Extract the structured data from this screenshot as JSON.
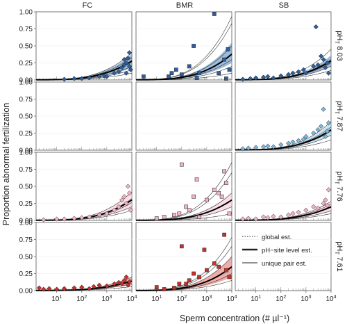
{
  "figure": {
    "ylabel": "Proportion abnormal fertilization",
    "xlabel": "Sperm concentration (# µl⁻¹)"
  },
  "columns": [
    "FC",
    "BMR",
    "SB"
  ],
  "rows": [
    "pH_T 8.03",
    "pH_T 7.87",
    "pH_T 7.76",
    "pH_T 7.61"
  ],
  "row_labels": [
    {
      "pre": "pH",
      "sub": "T",
      "post": " 8.03"
    },
    {
      "pre": "pH",
      "sub": "T",
      "post": " 7.87"
    },
    {
      "pre": "pH",
      "sub": "T",
      "post": " 7.76"
    },
    {
      "pre": "pH",
      "sub": "T",
      "post": " 7.61"
    }
  ],
  "y_ticks": [
    "1.00",
    "0.75",
    "0.50",
    "0.25",
    "0.00"
  ],
  "x_ticks": [
    {
      "base": "10",
      "exp": "1"
    },
    {
      "base": "10",
      "exp": "2"
    },
    {
      "base": "10",
      "exp": "3"
    },
    {
      "base": "10",
      "exp": "4"
    }
  ],
  "legend": {
    "items": [
      {
        "label": "global est.",
        "style": "dotted"
      },
      {
        "label": "pH−site level est.",
        "style": "thick"
      },
      {
        "label": "unique pair est.",
        "style": "thin"
      }
    ]
  },
  "colors": {
    "pH_T 8.03": "#2f5f9a",
    "pH_T 7.87": "#7fb6dc",
    "pH_T 7.76": "#f2b2c4",
    "pH_T 7.61": "#c8302c",
    "band_8.03": "#5b8ec2",
    "band_7.87": "#9ccbe8",
    "band_7.76": "#f6c9d6",
    "band_7.61": "#e87770"
  },
  "chart_data": {
    "type": "scatter",
    "x_scale": "log",
    "xlim": [
      1.5,
      10000
    ],
    "ylim": [
      0,
      1
    ],
    "panels": [
      {
        "row": "pH_T 8.03",
        "col": "FC",
        "marker": "diamond",
        "color": "#2f5f9a",
        "points": [
          [
            20,
            0.01
          ],
          [
            50,
            0.02
          ],
          [
            100,
            0.02
          ],
          [
            200,
            0.03
          ],
          [
            500,
            0.05
          ],
          [
            800,
            0.06
          ],
          [
            1000,
            0.05
          ],
          [
            2000,
            0.1
          ],
          [
            3000,
            0.12
          ],
          [
            4000,
            0.18
          ],
          [
            5000,
            0.22
          ],
          [
            5000,
            0.3
          ],
          [
            6000,
            0.25
          ],
          [
            7000,
            0.32
          ],
          [
            8000,
            0.2
          ],
          [
            8000,
            0.4
          ],
          [
            9000,
            0.15
          ],
          [
            6000,
            0.1
          ]
        ],
        "curve_global": [
          0.002,
          0.28
        ],
        "curve_site": [
          0.003,
          0.28
        ],
        "band": [
          0.18,
          0.38
        ],
        "pair_ends": [
          0.1,
          0.15,
          0.2,
          0.26,
          0.33,
          0.4
        ]
      },
      {
        "row": "pH_T 8.03",
        "col": "BMR",
        "marker": "square",
        "color": "#2f5f9a",
        "points": [
          [
            3,
            0.05
          ],
          [
            30,
            0.05
          ],
          [
            40,
            0.1
          ],
          [
            60,
            0.15
          ],
          [
            100,
            0.08
          ],
          [
            200,
            0.2
          ],
          [
            300,
            0.5
          ],
          [
            400,
            0.03
          ],
          [
            500,
            0.1
          ],
          [
            2000,
            0.97
          ],
          [
            3000,
            0.1
          ],
          [
            5000,
            0.3
          ],
          [
            6000,
            0.02
          ],
          [
            7000,
            0.45
          ],
          [
            8000,
            0.15
          ]
        ],
        "curve_global": [
          0.002,
          0.38
        ],
        "curve_site": [
          0.003,
          0.38
        ],
        "band": [
          0.25,
          0.55
        ],
        "pair_ends": [
          0.1,
          0.2,
          0.3,
          0.5,
          0.83,
          0.93
        ]
      },
      {
        "row": "pH_T 8.03",
        "col": "SB",
        "marker": "diamond",
        "color": "#2f5f9a",
        "points": [
          [
            3,
            0.01
          ],
          [
            6,
            0.02
          ],
          [
            10,
            0.03
          ],
          [
            20,
            0.04
          ],
          [
            30,
            0.05
          ],
          [
            50,
            0.03
          ],
          [
            100,
            0.06
          ],
          [
            200,
            0.08
          ],
          [
            300,
            0.1
          ],
          [
            500,
            0.12
          ],
          [
            800,
            0.15
          ],
          [
            1000,
            0.1
          ],
          [
            2000,
            0.2
          ],
          [
            2500,
            0.78
          ],
          [
            3000,
            0.22
          ],
          [
            4000,
            0.35
          ],
          [
            5000,
            0.3
          ],
          [
            6000,
            0.18
          ],
          [
            7000,
            0.25
          ],
          [
            8000,
            0.1
          ]
        ],
        "curve_global": [
          0.002,
          0.28
        ],
        "curve_site": [
          0.003,
          0.28
        ],
        "band": [
          0.2,
          0.36
        ],
        "pair_ends": [
          0.14,
          0.2,
          0.25,
          0.3,
          0.45
        ]
      },
      {
        "row": "pH_T 7.87",
        "col": "FC",
        "empty": true,
        "points": []
      },
      {
        "row": "pH_T 7.87",
        "col": "BMR",
        "empty": true,
        "points": []
      },
      {
        "row": "pH_T 7.87",
        "col": "SB",
        "marker": "diamond",
        "color": "#7fb6dc",
        "points": [
          [
            3,
            0.02
          ],
          [
            5,
            0.03
          ],
          [
            10,
            0.04
          ],
          [
            20,
            0.05
          ],
          [
            30,
            0.06
          ],
          [
            50,
            0.05
          ],
          [
            100,
            0.08
          ],
          [
            200,
            0.1
          ],
          [
            300,
            0.12
          ],
          [
            500,
            0.14
          ],
          [
            800,
            0.16
          ],
          [
            1000,
            0.2
          ],
          [
            2000,
            0.25
          ],
          [
            3000,
            0.3
          ],
          [
            4000,
            0.35
          ],
          [
            5000,
            0.6
          ],
          [
            6000,
            0.2
          ],
          [
            7000,
            0.28
          ],
          [
            8000,
            0.4
          ]
        ],
        "curve_global": [
          0.004,
          0.3
        ],
        "curve_site": [
          0.005,
          0.3
        ],
        "band": [
          0.22,
          0.4
        ],
        "pair_ends": [
          0.15,
          0.22,
          0.28,
          0.34,
          0.42
        ]
      },
      {
        "row": "pH_T 7.76",
        "col": "FC",
        "marker": "diamond",
        "color": "#f2b2c4",
        "points": [
          [
            3,
            0.01
          ],
          [
            10,
            0.02
          ],
          [
            20,
            0.02
          ],
          [
            50,
            0.03
          ],
          [
            100,
            0.04
          ],
          [
            200,
            0.05
          ],
          [
            500,
            0.08
          ],
          [
            1000,
            0.1
          ],
          [
            2000,
            0.15
          ],
          [
            3000,
            0.2
          ],
          [
            4000,
            0.3
          ],
          [
            5000,
            0.35
          ],
          [
            6000,
            0.25
          ],
          [
            7000,
            0.5
          ],
          [
            8000,
            0.4
          ],
          [
            9000,
            0.15
          ]
        ],
        "curve_global": [
          0.002,
          0.3
        ],
        "curve_site": [
          0.003,
          0.3
        ],
        "band": [
          0.2,
          0.42
        ],
        "pair_ends": [
          0.15,
          0.2,
          0.26,
          0.32,
          0.42
        ]
      },
      {
        "row": "pH_T 7.76",
        "col": "BMR",
        "marker": "square",
        "color": "#f2b2c4",
        "points": [
          [
            10,
            0.03
          ],
          [
            20,
            0.05
          ],
          [
            50,
            0.08
          ],
          [
            80,
            0.1
          ],
          [
            100,
            0.82
          ],
          [
            150,
            0.2
          ],
          [
            200,
            0.15
          ],
          [
            300,
            0.35
          ],
          [
            400,
            0.6
          ],
          [
            500,
            0.05
          ],
          [
            1000,
            0.3
          ],
          [
            2000,
            0.45
          ],
          [
            3000,
            0.4
          ],
          [
            4000,
            0.35
          ],
          [
            5000,
            0.72
          ],
          [
            6000,
            0.55
          ],
          [
            8000,
            0.1
          ]
        ],
        "curve_global": [
          0.002,
          0.3
        ],
        "curve_site": [
          0.003,
          0.3
        ],
        "band": [
          0.2,
          0.42
        ],
        "pair_ends": [
          0.1,
          0.2,
          0.3,
          0.4,
          0.7,
          0.85
        ]
      },
      {
        "row": "pH_T 7.76",
        "col": "SB",
        "marker": "diamond",
        "color": "#f2b2c4",
        "points": [
          [
            3,
            0.02
          ],
          [
            5,
            0.03
          ],
          [
            10,
            0.02
          ],
          [
            20,
            0.05
          ],
          [
            30,
            0.04
          ],
          [
            50,
            0.06
          ],
          [
            100,
            0.05
          ],
          [
            200,
            0.08
          ],
          [
            300,
            0.1
          ],
          [
            500,
            0.12
          ],
          [
            1000,
            0.15
          ],
          [
            2000,
            0.2
          ],
          [
            3000,
            0.18
          ],
          [
            5000,
            0.25
          ],
          [
            6000,
            0.3
          ],
          [
            7000,
            0.22
          ],
          [
            8000,
            0.45
          ]
        ],
        "curve_global": [
          0.002,
          0.2
        ],
        "curve_site": [
          0.003,
          0.2
        ],
        "band": [
          0.14,
          0.28
        ],
        "pair_ends": [
          0.1,
          0.14,
          0.19,
          0.24,
          0.28
        ]
      },
      {
        "row": "pH_T 7.61",
        "col": "FC",
        "marker": "diamond",
        "color": "#c8302c",
        "points": [
          [
            2,
            0.04
          ],
          [
            3,
            0.02
          ],
          [
            5,
            0.03
          ],
          [
            10,
            0.02
          ],
          [
            20,
            0.03
          ],
          [
            50,
            0.04
          ],
          [
            100,
            0.05
          ],
          [
            200,
            0.03
          ],
          [
            300,
            0.06
          ],
          [
            500,
            0.08
          ],
          [
            1000,
            0.07
          ],
          [
            2000,
            0.1
          ],
          [
            3000,
            0.12
          ],
          [
            4000,
            0.1
          ],
          [
            5000,
            0.15
          ],
          [
            6000,
            0.2
          ],
          [
            7000,
            0.08
          ],
          [
            8000,
            0.13
          ]
        ],
        "curve_global": [
          0.002,
          0.14
        ],
        "curve_site": [
          0.003,
          0.14
        ],
        "band": [
          0.09,
          0.2
        ],
        "pair_ends": [
          0.06,
          0.1,
          0.13,
          0.16,
          0.2
        ]
      },
      {
        "row": "pH_T 7.61",
        "col": "BMR",
        "marker": "square",
        "color": "#c8302c",
        "points": [
          [
            10,
            0.05
          ],
          [
            20,
            0.02
          ],
          [
            50,
            0.04
          ],
          [
            80,
            0.1
          ],
          [
            100,
            0.65
          ],
          [
            150,
            0.1
          ],
          [
            200,
            0.15
          ],
          [
            300,
            0.25
          ],
          [
            500,
            0.2
          ],
          [
            800,
            0.6
          ],
          [
            1000,
            0.3
          ],
          [
            2000,
            0.4
          ],
          [
            3000,
            0.35
          ],
          [
            5000,
            0.82
          ],
          [
            6000,
            0.3
          ],
          [
            8000,
            0.2
          ]
        ],
        "curve_global": [
          0.002,
          0.35
        ],
        "curve_site": [
          0.003,
          0.35
        ],
        "band": [
          0.2,
          0.5
        ],
        "pair_ends": [
          0.15,
          0.25,
          0.35,
          0.5,
          0.65,
          0.78
        ]
      },
      {
        "row": "pH_T 7.61",
        "col": "SB",
        "legend": true,
        "points": []
      }
    ]
  }
}
